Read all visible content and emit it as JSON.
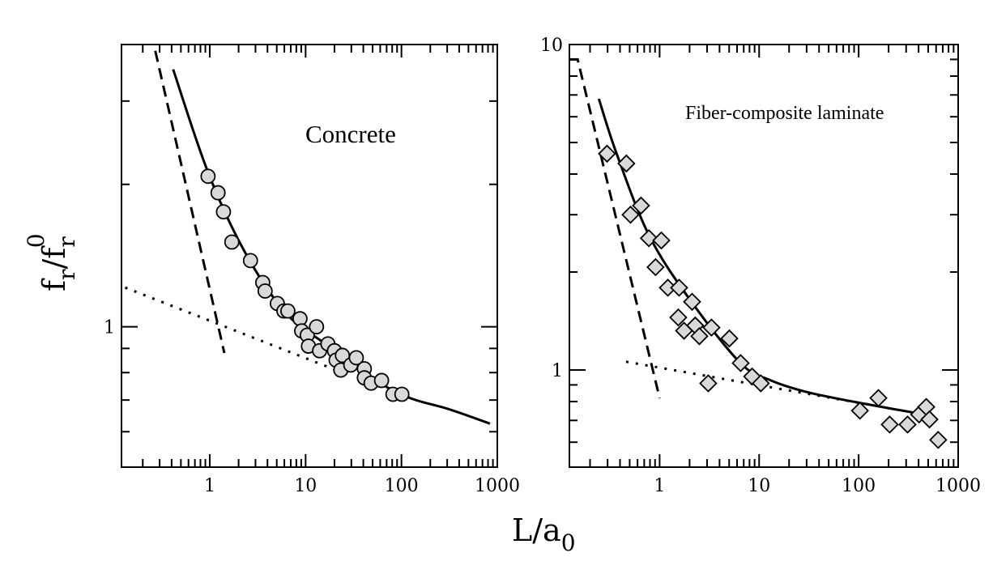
{
  "figure": {
    "shared_xlabel": "L/a",
    "shared_xlabel_sub": "0",
    "shared_ylabel_main": "f",
    "shared_ylabel_sub1": "r",
    "shared_ylabel_mid": "/f",
    "shared_ylabel_sub2": "r",
    "shared_ylabel_sup": "0"
  },
  "chart_data": [
    {
      "type": "scatter",
      "title": "",
      "annotation": "Concrete",
      "xlabel": "L/a0",
      "ylabel": "fr/fr0",
      "xscale": "log",
      "yscale": "log",
      "xlim": [
        0.12,
        1000
      ],
      "ylim": [
        0.505,
        3.95
      ],
      "grid": false,
      "legend": "none",
      "x_ticks": [
        {
          "value": 1,
          "label": "1"
        },
        {
          "value": 10,
          "label": "10"
        },
        {
          "value": 100,
          "label": "100"
        },
        {
          "value": 1000,
          "label": "1000"
        }
      ],
      "y_ticks": [
        {
          "value": 1,
          "label": "1"
        }
      ],
      "y_minor_ticks": [
        0.6,
        0.7,
        0.8,
        0.9,
        2,
        3
      ],
      "series": [
        {
          "name": "Concrete data",
          "kind": "points",
          "marker": "circle",
          "fill": "#d9d9d9",
          "stroke": "#000000",
          "points": [
            [
              0.96,
              2.08
            ],
            [
              1.22,
              1.92
            ],
            [
              1.39,
              1.75
            ],
            [
              1.7,
              1.51
            ],
            [
              2.66,
              1.38
            ],
            [
              3.57,
              1.24
            ],
            [
              3.78,
              1.19
            ],
            [
              5.07,
              1.12
            ],
            [
              5.93,
              1.08
            ],
            [
              6.53,
              1.08
            ],
            [
              8.74,
              1.04
            ],
            [
              9.1,
              0.98
            ],
            [
              10.4,
              0.96
            ],
            [
              13.0,
              1.0
            ],
            [
              10.7,
              0.91
            ],
            [
              14.0,
              0.89
            ],
            [
              17.1,
              0.92
            ],
            [
              20.0,
              0.89
            ],
            [
              20.8,
              0.85
            ],
            [
              24.2,
              0.87
            ],
            [
              23.3,
              0.81
            ],
            [
              29.6,
              0.83
            ],
            [
              33.8,
              0.86
            ],
            [
              41.0,
              0.815
            ],
            [
              41.0,
              0.78
            ],
            [
              48.2,
              0.76
            ],
            [
              62.0,
              0.77
            ],
            [
              81.5,
              0.72
            ],
            [
              101.0,
              0.72
            ]
          ]
        },
        {
          "name": "Solid fit",
          "kind": "line",
          "style": "solid",
          "points": [
            [
              0.415,
              3.5
            ],
            [
              0.96,
              2.12
            ],
            [
              2.32,
              1.44
            ],
            [
              6.2,
              1.07
            ],
            [
              16.4,
              0.917
            ],
            [
              43.6,
              0.79
            ],
            [
              116,
              0.71
            ],
            [
              310,
              0.67
            ],
            [
              840,
              0.624
            ]
          ]
        },
        {
          "name": "Dashed asymptote",
          "kind": "line",
          "style": "dashed",
          "points": [
            [
              0.27,
              3.83
            ],
            [
              1.42,
              0.88
            ]
          ]
        },
        {
          "name": "Dotted asymptote",
          "kind": "line",
          "style": "dotted",
          "points": [
            [
              0.131,
              1.21
            ],
            [
              24.2,
              0.8
            ]
          ]
        }
      ]
    },
    {
      "type": "scatter",
      "title": "",
      "annotation": "Fiber-composite laminate",
      "xlabel": "L/a0",
      "ylabel": "fr/fr0",
      "xscale": "log",
      "yscale": "log",
      "xlim": [
        0.124,
        1000
      ],
      "ylim": [
        0.503,
        10
      ],
      "grid": false,
      "legend": "none",
      "x_ticks": [
        {
          "value": 1,
          "label": "1"
        },
        {
          "value": 10,
          "label": "10"
        },
        {
          "value": 100,
          "label": "100"
        },
        {
          "value": 1000,
          "label": "1000"
        }
      ],
      "y_ticks": [
        {
          "value": 1,
          "label": "1"
        },
        {
          "value": 10,
          "label": "10"
        }
      ],
      "y_minor_ticks": [
        0.6,
        0.7,
        0.8,
        0.9,
        2,
        3,
        4,
        5,
        6,
        7,
        8,
        9
      ],
      "series": [
        {
          "name": "Fiber-composite laminate data",
          "kind": "points",
          "marker": "diamond",
          "fill": "#d9d9d9",
          "stroke": "#000000",
          "points": [
            [
              0.296,
              4.62
            ],
            [
              0.463,
              4.31
            ],
            [
              0.65,
              3.2
            ],
            [
              0.51,
              3.0
            ],
            [
              0.78,
              2.54
            ],
            [
              1.04,
              2.5
            ],
            [
              0.91,
              2.07
            ],
            [
              1.21,
              1.79
            ],
            [
              1.57,
              1.79
            ],
            [
              2.12,
              1.62
            ],
            [
              1.54,
              1.45
            ],
            [
              1.76,
              1.32
            ],
            [
              2.28,
              1.37
            ],
            [
              2.51,
              1.27
            ],
            [
              3.32,
              1.35
            ],
            [
              5.02,
              1.25
            ],
            [
              6.52,
              1.05
            ],
            [
              8.5,
              0.955
            ],
            [
              10.4,
              0.91
            ],
            [
              3.08,
              0.91
            ],
            [
              103,
              0.75
            ],
            [
              158,
              0.82
            ],
            [
              205,
              0.68
            ],
            [
              310,
              0.68
            ],
            [
              405,
              0.73
            ],
            [
              478,
              0.77
            ],
            [
              515,
              0.705
            ],
            [
              630,
              0.61
            ]
          ]
        },
        {
          "name": "Solid fit",
          "kind": "line",
          "style": "solid",
          "points": [
            [
              0.245,
              6.81
            ],
            [
              0.37,
              4.62
            ],
            [
              0.78,
              2.6
            ],
            [
              2.0,
              1.65
            ],
            [
              6.5,
              1.05
            ],
            [
              13.0,
              0.93
            ],
            [
              33,
              0.85
            ],
            [
              136,
              0.78
            ],
            [
              522,
              0.725
            ]
          ]
        },
        {
          "name": "Dashed asymptote",
          "kind": "line",
          "style": "dashed",
          "points": [
            [
              0.124,
              9.0
            ],
            [
              0.15,
              9.0
            ],
            [
              1.0,
              0.82
            ]
          ]
        },
        {
          "name": "Dotted asymptote",
          "kind": "line",
          "style": "dotted",
          "points": [
            [
              0.46,
              1.06
            ],
            [
              136,
              0.78
            ]
          ]
        }
      ]
    }
  ]
}
